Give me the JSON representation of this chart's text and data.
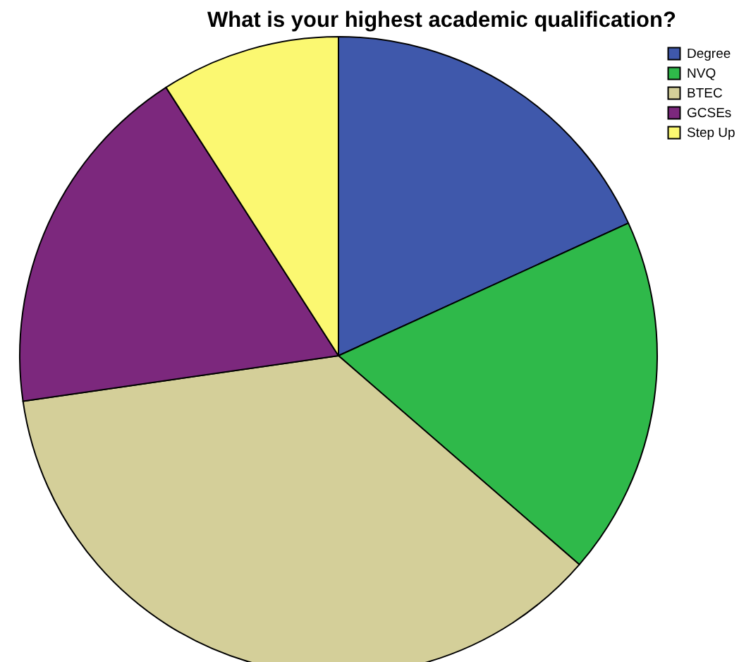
{
  "chart_data": {
    "type": "pie",
    "title": "What is your highest academic qualification?",
    "categories": [
      "Degree",
      "NVQ",
      "BTEC",
      "GCSEs",
      "Step Up"
    ],
    "values": [
      18.18,
      18.18,
      36.36,
      18.18,
      9.1
    ],
    "colors": [
      "#3f58ab",
      "#2fb94a",
      "#d4cf99",
      "#7c287d",
      "#fbf871"
    ],
    "legend": "top right"
  }
}
